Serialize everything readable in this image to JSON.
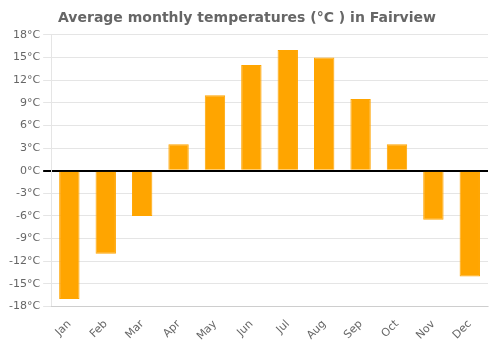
{
  "chart_data": {
    "type": "bar",
    "title": "Average monthly temperatures (°C ) in Fairview",
    "categories": [
      "Jan",
      "Feb",
      "Mar",
      "Apr",
      "May",
      "Jun",
      "Jul",
      "Aug",
      "Sep",
      "Oct",
      "Nov",
      "Dec"
    ],
    "values": [
      -17,
      -11,
      -6,
      3.5,
      10,
      14,
      16,
      15,
      9.5,
      3.5,
      -6.5,
      -14
    ],
    "color": "#FFA500",
    "ylim": [
      -18,
      18
    ],
    "yticks": [
      {
        "value": -18,
        "label": "-18°C"
      },
      {
        "value": -15,
        "label": "-15°C"
      },
      {
        "value": -12,
        "label": "-12°C"
      },
      {
        "value": -9,
        "label": "-9°C"
      },
      {
        "value": -6,
        "label": "-6°C"
      },
      {
        "value": -3,
        "label": "-3°C"
      },
      {
        "value": 0,
        "label": "0°C"
      },
      {
        "value": 3,
        "label": "3°C"
      },
      {
        "value": 6,
        "label": "6°C"
      },
      {
        "value": 9,
        "label": "9°C"
      },
      {
        "value": 12,
        "label": "12°C"
      },
      {
        "value": 15,
        "label": "15°C"
      },
      {
        "value": 18,
        "label": "18°C"
      }
    ],
    "grid": true
  }
}
